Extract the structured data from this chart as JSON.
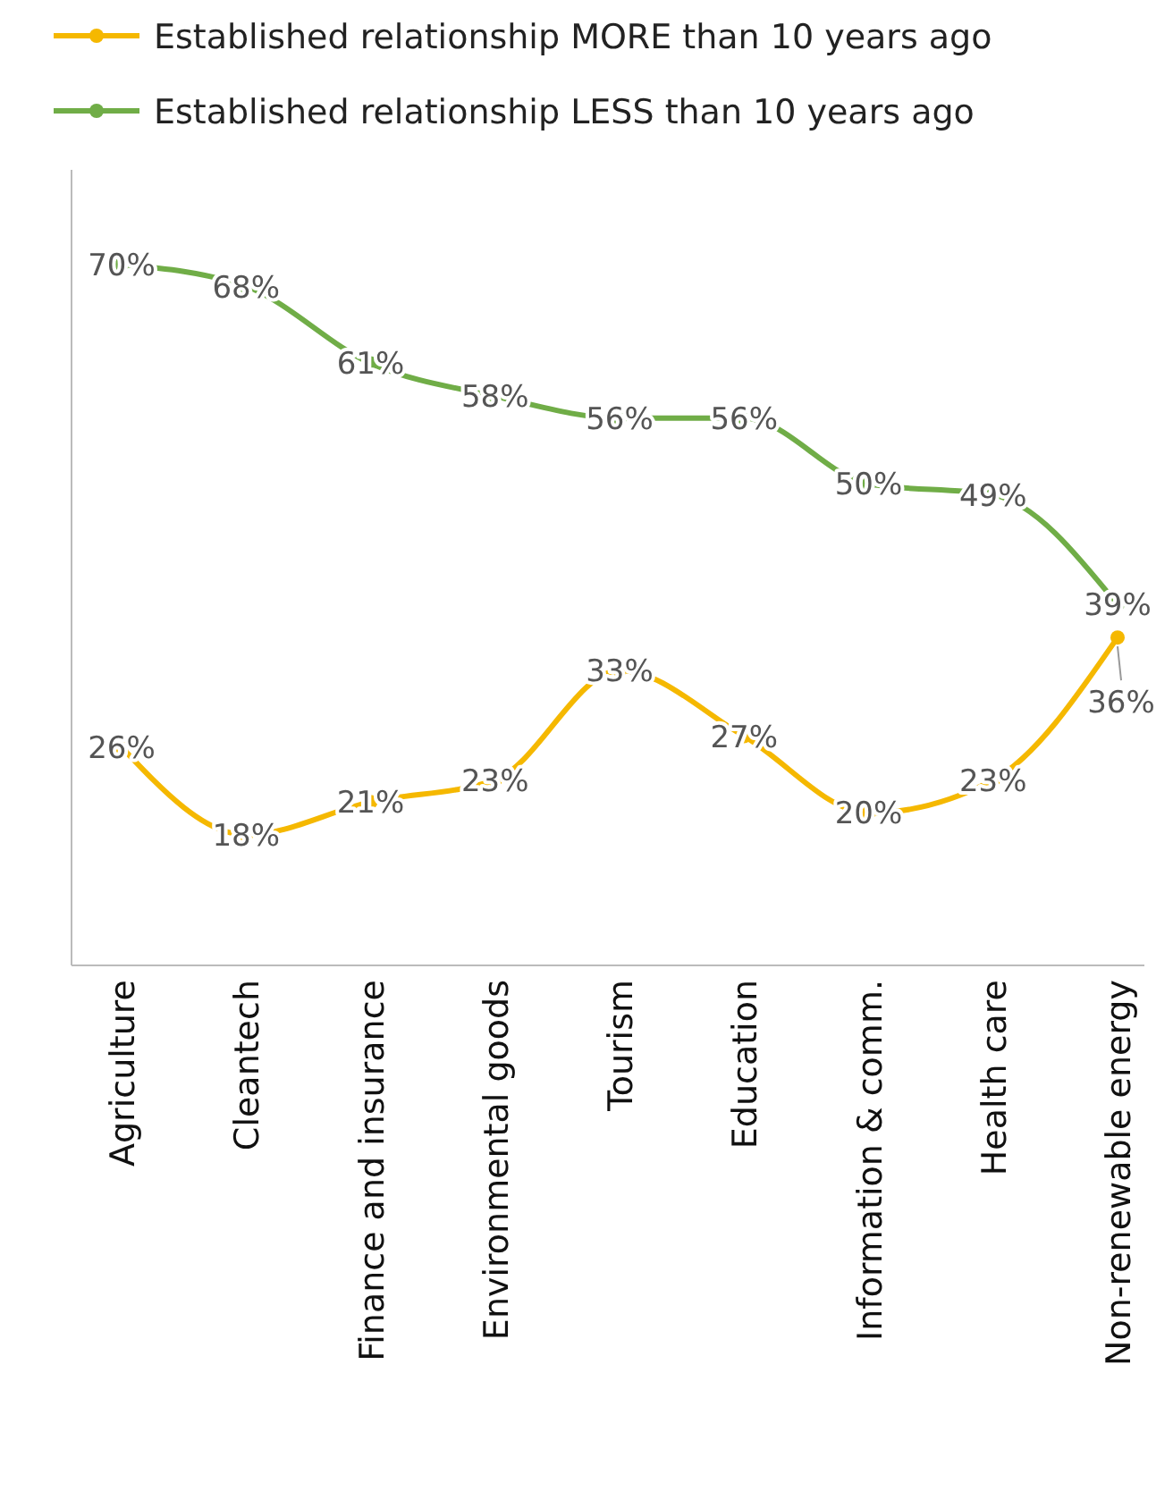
{
  "chart_data": {
    "type": "line",
    "categories": [
      "Agriculture",
      "Cleantech",
      "Finance and insurance",
      "Environmental goods",
      "Tourism",
      "Education",
      "Information & comm.",
      "Health care",
      "Non-renewable energy"
    ],
    "series": [
      {
        "name": "Established relationship MORE than 10 years ago",
        "color": "#f5b800",
        "values": [
          26,
          18,
          21,
          23,
          33,
          27,
          20,
          23,
          36
        ],
        "value_labels": [
          "26%",
          "18%",
          "21%",
          "23%",
          "33%",
          "27%",
          "20%",
          "23%",
          "36%"
        ]
      },
      {
        "name": "Established relationship LESS than 10 years ago",
        "color": "#70ad47",
        "values": [
          70,
          68,
          61,
          58,
          56,
          56,
          50,
          49,
          39
        ],
        "value_labels": [
          "70%",
          "68%",
          "61%",
          "58%",
          "56%",
          "56%",
          "50%",
          "49%",
          "39%"
        ]
      }
    ],
    "legend": "top",
    "marker": "circle",
    "tick_labels": "x"
  }
}
